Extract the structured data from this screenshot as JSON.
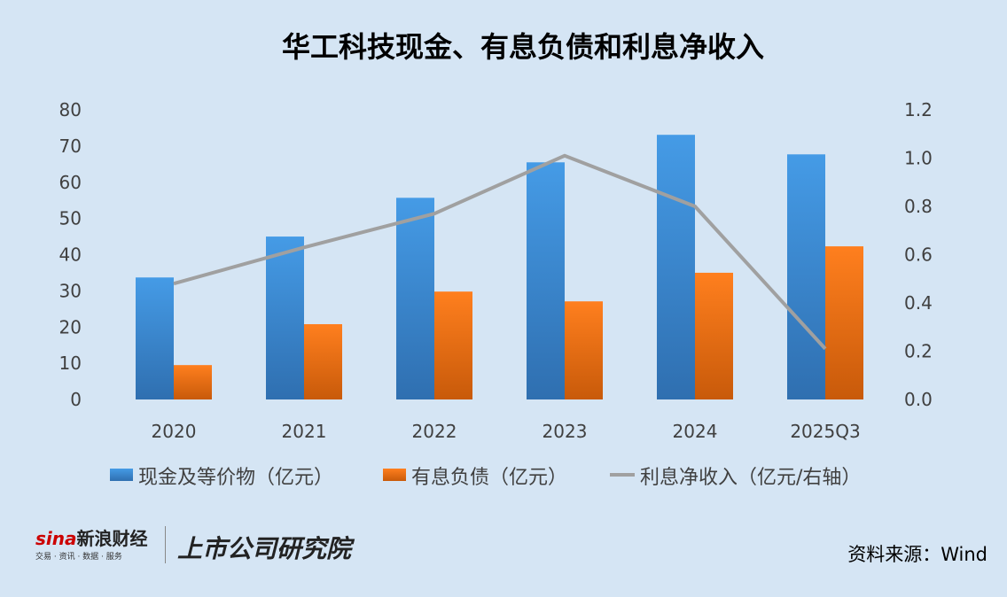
{
  "title": "华工科技现金、有息负债和利息净收入",
  "source": "资料来源：Wind",
  "logo": {
    "brand": "新浪财经",
    "sina": "sina",
    "tagline": "交易 · 资讯 · 数据 · 服务",
    "institute": "上市公司研究院"
  },
  "colors": {
    "cash": "#3d8fdc",
    "debt": "#f07818",
    "interest": "#a0a0a0",
    "background": "#d5e5f4"
  },
  "chart_data": {
    "type": "bar+line",
    "title": "华工科技现金、有息负债和利息净收入",
    "categories": [
      "2020",
      "2021",
      "2022",
      "2023",
      "2024",
      "2025Q3"
    ],
    "series": [
      {
        "name": "现金及等价物（亿元）",
        "type": "bar",
        "axis": "left",
        "values": [
          33.7,
          45.0,
          55.7,
          65.5,
          73.1,
          67.7
        ]
      },
      {
        "name": "有息负债（亿元）",
        "type": "bar",
        "axis": "left",
        "values": [
          9.5,
          20.8,
          29.8,
          27.1,
          35.0,
          42.3
        ]
      },
      {
        "name": "利息净收入（亿元/右轴）",
        "type": "line",
        "axis": "right",
        "values": [
          0.48,
          0.63,
          0.77,
          1.01,
          0.8,
          0.21
        ]
      }
    ],
    "ylim_left": [
      0,
      80
    ],
    "yticks_left": [
      "0",
      "10",
      "20",
      "30",
      "40",
      "50",
      "60",
      "70",
      "80"
    ],
    "ylim_right": [
      0,
      1.2
    ],
    "yticks_right": [
      "0.0",
      "0.2",
      "0.4",
      "0.6",
      "0.8",
      "1.0",
      "1.2"
    ],
    "grid": false,
    "legend": "bottom"
  }
}
